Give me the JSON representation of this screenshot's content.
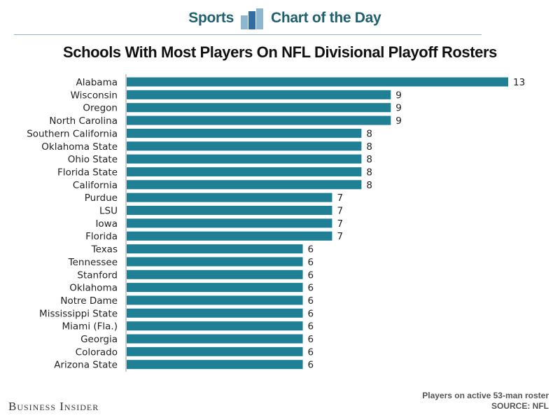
{
  "header": {
    "brand_left": "Sports",
    "brand_right": "Chart of the Day",
    "logo_icon": "bar-chart-logo-icon"
  },
  "chart_data": {
    "type": "bar",
    "orientation": "horizontal",
    "title": "Schools With Most Players On NFL Divisional Playoff Rosters",
    "categories": [
      "Alabama",
      "Wisconsin",
      "Oregon",
      "North Carolina",
      "Southern California",
      "Oklahoma State",
      "Ohio State",
      "Florida State",
      "California",
      "Purdue",
      "LSU",
      "Iowa",
      "Florida",
      "Texas",
      "Tennessee",
      "Stanford",
      "Oklahoma",
      "Notre Dame",
      "Mississippi State",
      "Miami (Fla.)",
      "Georgia",
      "Colorado",
      "Arizona State"
    ],
    "values": [
      13,
      9,
      9,
      9,
      8,
      8,
      8,
      8,
      8,
      7,
      7,
      7,
      7,
      6,
      6,
      6,
      6,
      6,
      6,
      6,
      6,
      6,
      6
    ],
    "xlim": [
      0,
      13
    ],
    "bar_color": "#1f7f95",
    "grid": false
  },
  "footnote": {
    "line1": "Players on active 53-man roster",
    "line2": "SOURCE: NFL"
  },
  "publisher": "Business Insider"
}
